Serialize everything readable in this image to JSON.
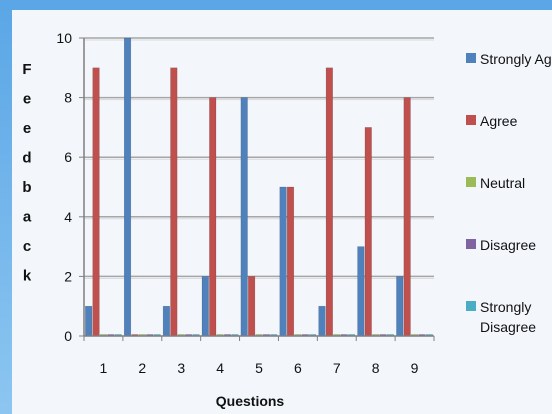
{
  "chart_data": {
    "type": "bar",
    "title": "",
    "xlabel": "Questions",
    "ylabel": "Feedback",
    "categories": [
      "1",
      "2",
      "3",
      "4",
      "5",
      "6",
      "7",
      "8",
      "9"
    ],
    "ylim": [
      0,
      10
    ],
    "yticks": [
      0,
      2,
      4,
      6,
      8,
      10
    ],
    "grid": true,
    "legend_position": "right",
    "series": [
      {
        "name": "Strongly Agree",
        "color": "#4f81bd",
        "values": [
          1,
          10,
          1,
          2,
          8,
          5,
          1,
          3,
          2
        ]
      },
      {
        "name": "Agree",
        "color": "#c0504d",
        "values": [
          9,
          0,
          9,
          8,
          2,
          5,
          9,
          7,
          8
        ]
      },
      {
        "name": "Neutral",
        "color": "#9bbb59",
        "values": [
          0,
          0,
          0,
          0,
          0,
          0,
          0,
          0,
          0
        ]
      },
      {
        "name": "Disagree",
        "color": "#8064a2",
        "values": [
          0,
          0,
          0,
          0,
          0,
          0,
          0,
          0,
          0
        ]
      },
      {
        "name": "Strongly Disagree",
        "color": "#4bacc6",
        "values": [
          0,
          0,
          0,
          0,
          0,
          0,
          0,
          0,
          0
        ]
      }
    ]
  }
}
